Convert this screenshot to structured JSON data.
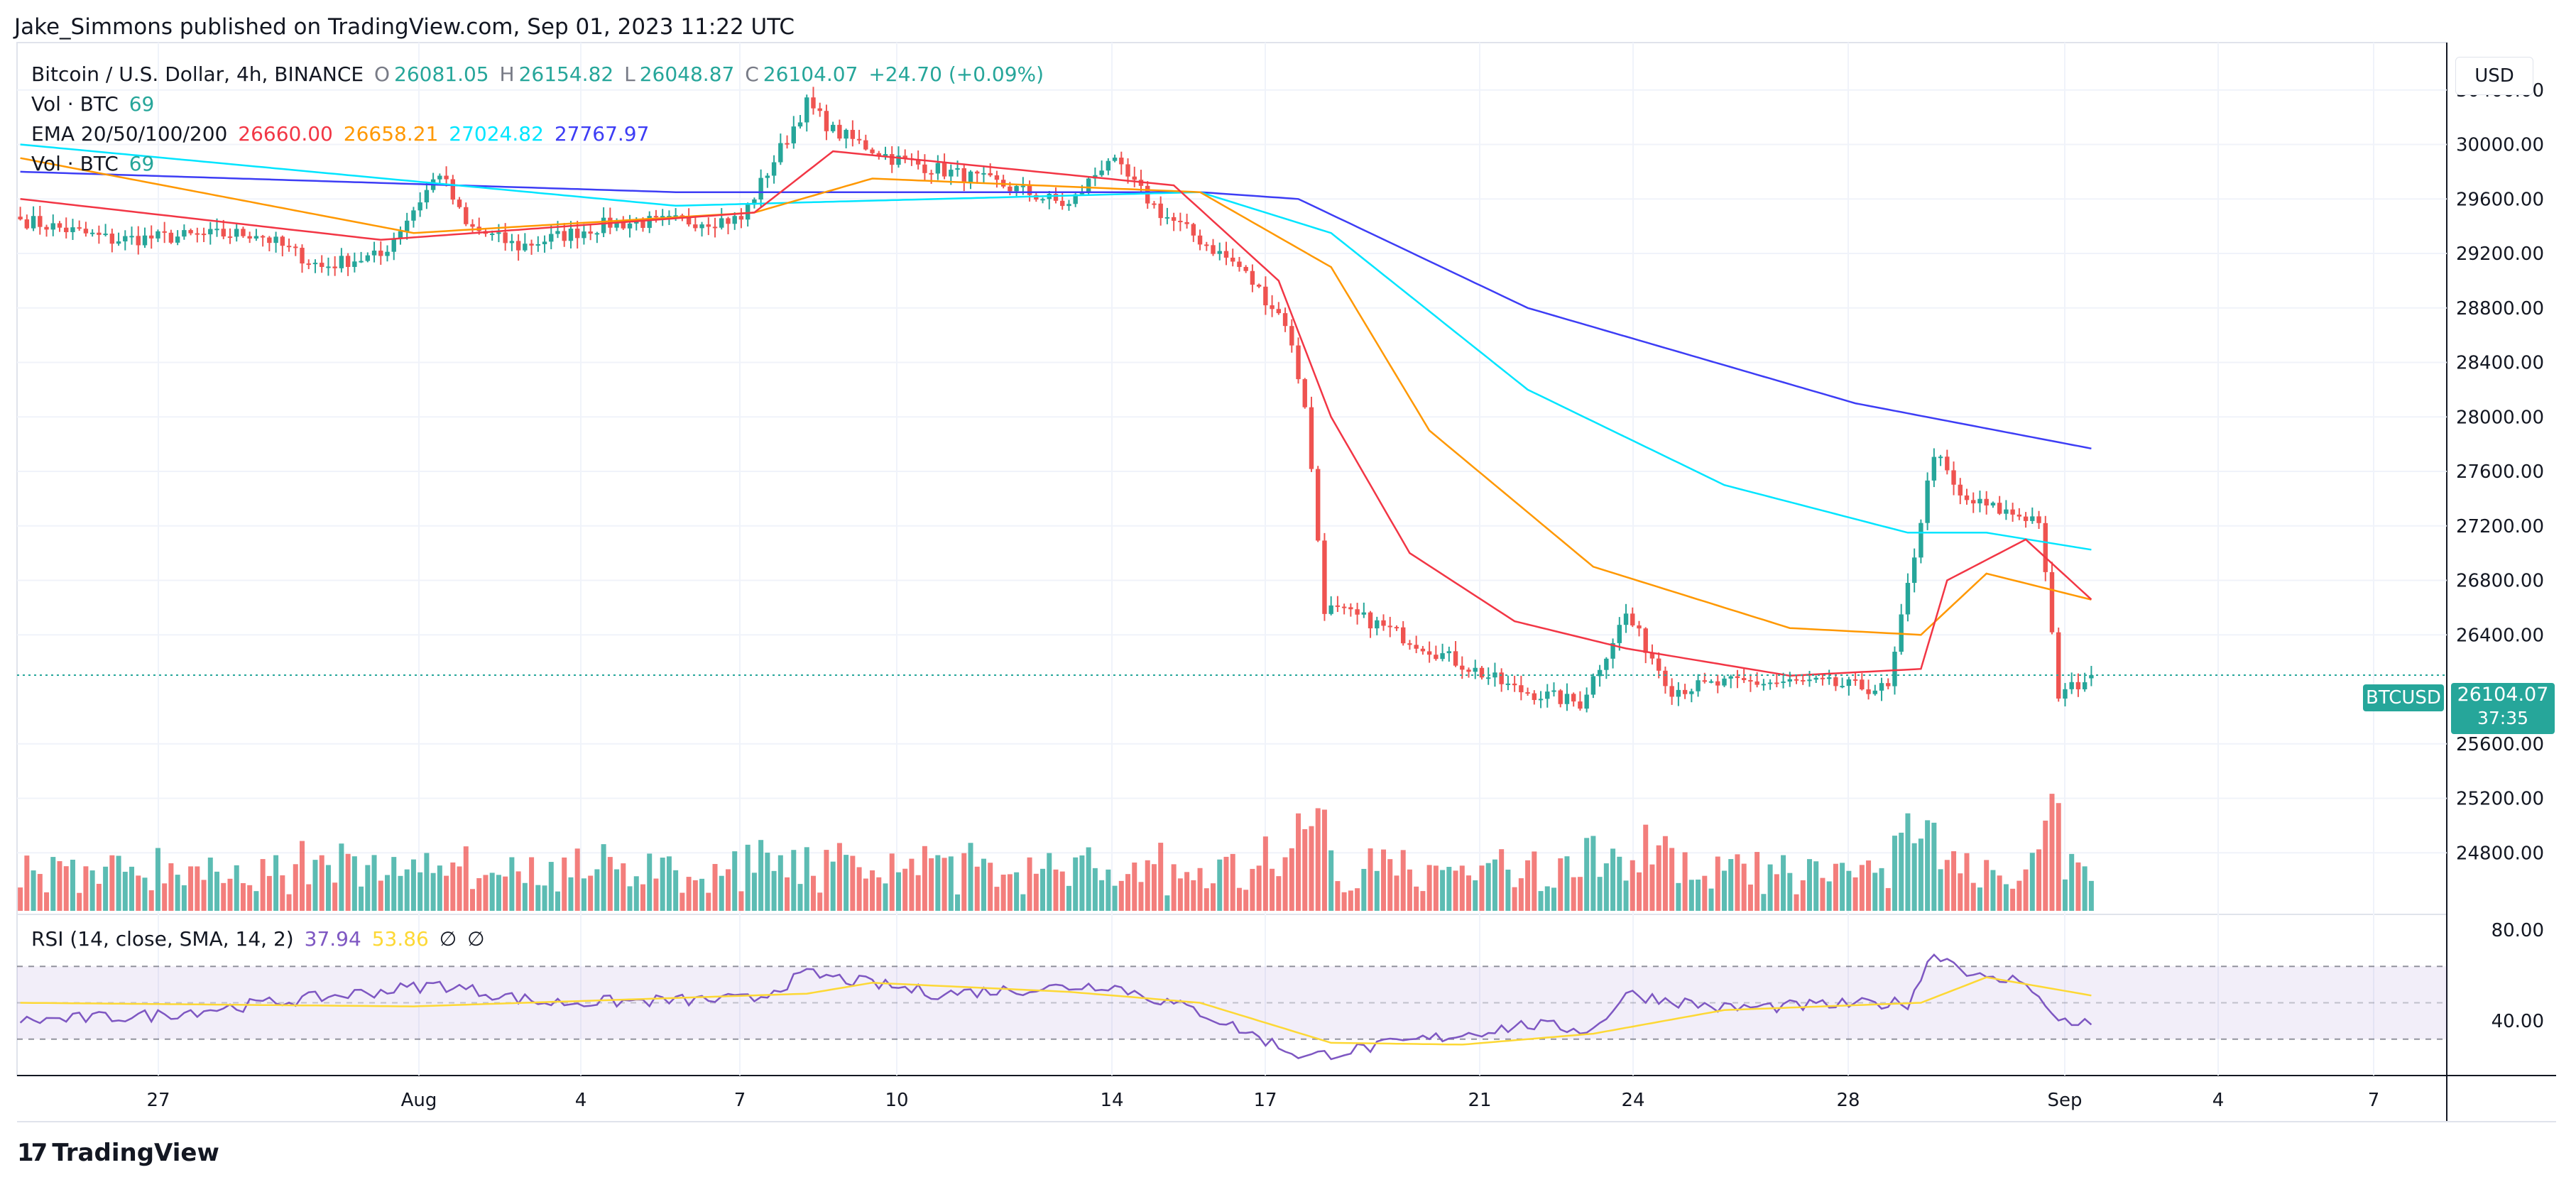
{
  "header": {
    "publisher": "Jake_Simmons published on TradingView.com, Sep 01, 2023 11:22 UTC"
  },
  "legend": {
    "symbol": "Bitcoin / U.S. Dollar, 4h, BINANCE",
    "open_label": "O",
    "open": "26081.05",
    "high_label": "H",
    "high": "26154.82",
    "low_label": "L",
    "low": "26048.87",
    "close_label": "C",
    "close": "26104.07",
    "change": "+24.70 (+0.09%)",
    "vol_label": "Vol · BTC",
    "vol_value": "69",
    "ema_label": "EMA 20/50/100/200",
    "ema20": "26660.00",
    "ema50": "26658.21",
    "ema100": "27024.82",
    "ema200": "27767.97",
    "vol2_label": "Vol · BTC",
    "vol2_value": "69",
    "rsi_label": "RSI (14, close, SMA, 14, 2)",
    "rsi_value": "37.94",
    "rsi_sma": "53.86",
    "rsi_empty1": "∅",
    "rsi_empty2": "∅"
  },
  "currency_button": "USD",
  "price_tag": {
    "symbol": "BTCUSD",
    "price": "26104.07",
    "countdown": "37:35"
  },
  "footer": {
    "brand": "TradingView",
    "logo_text": "17"
  },
  "colors": {
    "up": "#26a69a",
    "down": "#ef5350",
    "ema20": "#f23645",
    "ema50": "#ff9800",
    "ema100": "#00e5ff",
    "ema200": "#3d3df5",
    "rsi": "#7e57c2",
    "rsi_sma": "#fdd835"
  },
  "chart_data": {
    "type": "candlestick",
    "title": "Bitcoin / U.S. Dollar, 4h, BINANCE",
    "y_ticks": [
      "30400.00",
      "30000.00",
      "29600.00",
      "29200.00",
      "28800.00",
      "28400.00",
      "28000.00",
      "27600.00",
      "27200.00",
      "26800.00",
      "26400.00",
      "25600.00",
      "25200.00",
      "24800.00"
    ],
    "ylim": [
      24400,
      30800
    ],
    "x_ticks": [
      "27",
      "Aug",
      "4",
      "7",
      "10",
      "14",
      "17",
      "21",
      "24",
      "28",
      "Sep",
      "4",
      "7"
    ],
    "rsi_ticks": [
      "80.00",
      "40.00"
    ],
    "rsi_bands": [
      70,
      50,
      30
    ],
    "ohlc_anchors": [
      {
        "t": 0,
        "c": 29450
      },
      {
        "t": 14,
        "c": 29300
      },
      {
        "t": 36,
        "c": 29350
      },
      {
        "t": 46,
        "c": 29100
      },
      {
        "t": 50,
        "c": 29150
      },
      {
        "t": 55,
        "c": 29180
      },
      {
        "t": 64,
        "c": 29800
      },
      {
        "t": 68,
        "c": 29400
      },
      {
        "t": 76,
        "c": 29250
      },
      {
        "t": 90,
        "c": 29420
      },
      {
        "t": 110,
        "c": 29450
      },
      {
        "t": 114,
        "c": 29800
      },
      {
        "t": 120,
        "c": 30300
      },
      {
        "t": 124,
        "c": 30100
      },
      {
        "t": 133,
        "c": 29900
      },
      {
        "t": 150,
        "c": 29700
      },
      {
        "t": 160,
        "c": 29550
      },
      {
        "t": 166,
        "c": 29900
      },
      {
        "t": 174,
        "c": 29500
      },
      {
        "t": 186,
        "c": 29100
      },
      {
        "t": 193,
        "c": 28700
      },
      {
        "t": 196,
        "c": 28100
      },
      {
        "t": 199,
        "c": 26600
      },
      {
        "t": 206,
        "c": 26500
      },
      {
        "t": 215,
        "c": 26300
      },
      {
        "t": 228,
        "c": 26000
      },
      {
        "t": 238,
        "c": 25900
      },
      {
        "t": 245,
        "c": 26550
      },
      {
        "t": 252,
        "c": 26000
      },
      {
        "t": 262,
        "c": 26050
      },
      {
        "t": 272,
        "c": 26050
      },
      {
        "t": 285,
        "c": 26000
      },
      {
        "t": 292,
        "c": 27750
      },
      {
        "t": 296,
        "c": 27400
      },
      {
        "t": 303,
        "c": 27300
      },
      {
        "t": 308,
        "c": 27250
      },
      {
        "t": 311,
        "c": 25950
      },
      {
        "t": 316,
        "c": 26104.07
      }
    ],
    "ema200": [
      {
        "t": 0,
        "c": 29800
      },
      {
        "t": 100,
        "c": 29650
      },
      {
        "t": 180,
        "c": 29650
      },
      {
        "t": 195,
        "c": 29600
      },
      {
        "t": 230,
        "c": 28800
      },
      {
        "t": 280,
        "c": 28100
      },
      {
        "t": 316,
        "c": 27768
      }
    ],
    "ema100": [
      {
        "t": 0,
        "c": 30000
      },
      {
        "t": 100,
        "c": 29550
      },
      {
        "t": 180,
        "c": 29650
      },
      {
        "t": 200,
        "c": 29350
      },
      {
        "t": 230,
        "c": 28200
      },
      {
        "t": 260,
        "c": 27500
      },
      {
        "t": 288,
        "c": 27150
      },
      {
        "t": 300,
        "c": 27150
      },
      {
        "t": 316,
        "c": 27025
      }
    ],
    "ema50": [
      {
        "t": 0,
        "c": 29900
      },
      {
        "t": 60,
        "c": 29350
      },
      {
        "t": 112,
        "c": 29500
      },
      {
        "t": 130,
        "c": 29750
      },
      {
        "t": 180,
        "c": 29650
      },
      {
        "t": 200,
        "c": 29100
      },
      {
        "t": 215,
        "c": 27900
      },
      {
        "t": 240,
        "c": 26900
      },
      {
        "t": 270,
        "c": 26450
      },
      {
        "t": 290,
        "c": 26400
      },
      {
        "t": 300,
        "c": 26850
      },
      {
        "t": 316,
        "c": 26658
      }
    ],
    "ema20": [
      {
        "t": 0,
        "c": 29600
      },
      {
        "t": 55,
        "c": 29300
      },
      {
        "t": 112,
        "c": 29500
      },
      {
        "t": 124,
        "c": 29950
      },
      {
        "t": 176,
        "c": 29700
      },
      {
        "t": 192,
        "c": 29000
      },
      {
        "t": 200,
        "c": 28000
      },
      {
        "t": 212,
        "c": 27000
      },
      {
        "t": 228,
        "c": 26500
      },
      {
        "t": 245,
        "c": 26300
      },
      {
        "t": 270,
        "c": 26100
      },
      {
        "t": 290,
        "c": 26150
      },
      {
        "t": 294,
        "c": 26800
      },
      {
        "t": 306,
        "c": 27100
      },
      {
        "t": 316,
        "c": 26660
      }
    ],
    "rsi": [
      {
        "t": 0,
        "c": 40
      },
      {
        "t": 20,
        "c": 43
      },
      {
        "t": 64,
        "c": 60
      },
      {
        "t": 80,
        "c": 50
      },
      {
        "t": 112,
        "c": 52
      },
      {
        "t": 120,
        "c": 66
      },
      {
        "t": 140,
        "c": 55
      },
      {
        "t": 166,
        "c": 60
      },
      {
        "t": 180,
        "c": 45
      },
      {
        "t": 196,
        "c": 20
      },
      {
        "t": 205,
        "c": 25
      },
      {
        "t": 230,
        "c": 38
      },
      {
        "t": 240,
        "c": 35
      },
      {
        "t": 245,
        "c": 55
      },
      {
        "t": 260,
        "c": 47
      },
      {
        "t": 288,
        "c": 50
      },
      {
        "t": 292,
        "c": 78
      },
      {
        "t": 300,
        "c": 62
      },
      {
        "t": 306,
        "c": 63
      },
      {
        "t": 310,
        "c": 42
      },
      {
        "t": 316,
        "c": 38
      }
    ],
    "rsi_sma": [
      {
        "t": 0,
        "c": 50
      },
      {
        "t": 60,
        "c": 48
      },
      {
        "t": 120,
        "c": 55
      },
      {
        "t": 130,
        "c": 61
      },
      {
        "t": 160,
        "c": 56
      },
      {
        "t": 180,
        "c": 50
      },
      {
        "t": 200,
        "c": 28
      },
      {
        "t": 220,
        "c": 27
      },
      {
        "t": 240,
        "c": 33
      },
      {
        "t": 260,
        "c": 46
      },
      {
        "t": 290,
        "c": 50
      },
      {
        "t": 300,
        "c": 64
      },
      {
        "t": 316,
        "c": 54
      }
    ]
  }
}
